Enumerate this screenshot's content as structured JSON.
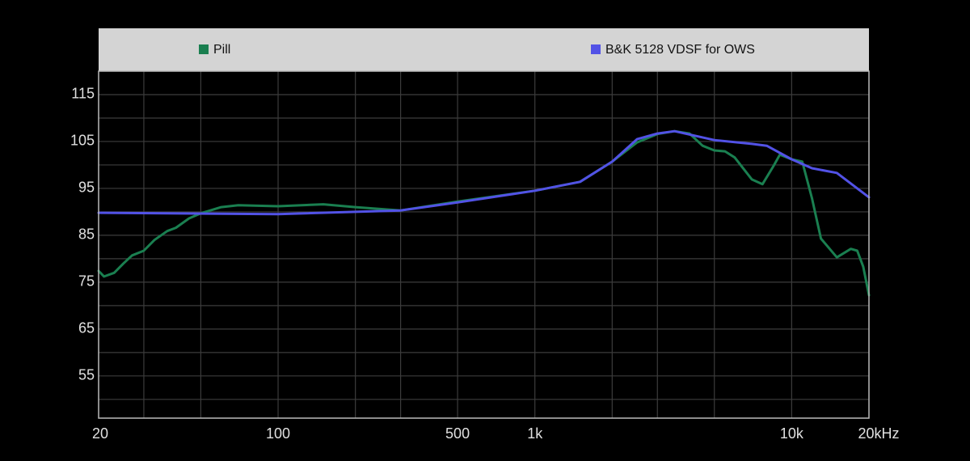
{
  "chart_data": {
    "type": "line",
    "xscale": "log",
    "xlim": [
      20,
      20000
    ],
    "ylim": [
      46,
      120
    ],
    "xticks": [
      20,
      100,
      500,
      {
        "value": 1000,
        "label": "1k"
      },
      {
        "value": 10000,
        "label": "10k"
      },
      {
        "value": 20000,
        "label": "20kHz"
      }
    ],
    "xgrid": [
      30,
      50,
      100,
      200,
      300,
      500,
      1000,
      2000,
      3000,
      5000,
      10000
    ],
    "yticks": [
      115,
      105,
      95,
      85,
      75,
      65,
      55
    ],
    "ygrid": [
      50,
      55,
      60,
      65,
      70,
      75,
      80,
      85,
      90,
      95,
      100,
      105,
      110,
      115
    ],
    "grid": true,
    "series": [
      {
        "name": "Pill",
        "color": "#1a7f50",
        "x": [
          20,
          21,
          23,
          25,
          27,
          30,
          33,
          37,
          40,
          45,
          50,
          60,
          70,
          100,
          150,
          200,
          300,
          500,
          1000,
          1500,
          2000,
          2500,
          3000,
          3500,
          4000,
          4500,
          5000,
          5500,
          6000,
          7000,
          7700,
          8500,
          9000,
          10000,
          11000,
          12000,
          13000,
          15000,
          17000,
          18000,
          19000,
          20000
        ],
        "values": [
          77.4,
          76.2,
          77,
          79,
          80.7,
          81.7,
          84,
          85.9,
          86.6,
          88.6,
          89.7,
          91,
          91.4,
          91.2,
          91.6,
          91,
          90.3,
          92.2,
          94.5,
          96.4,
          100.7,
          104.8,
          106.6,
          107.2,
          106.7,
          104.1,
          103.1,
          102.9,
          101.6,
          96.9,
          95.9,
          99.8,
          102.2,
          101.2,
          100.7,
          92.9,
          84.3,
          80.3,
          82.1,
          81.7,
          78.3,
          72.2
        ]
      },
      {
        "name": "B&K 5128 VDSF for OWS",
        "color": "#5252e6",
        "x": [
          20,
          100,
          300,
          500,
          1000,
          1500,
          2000,
          2500,
          3000,
          3500,
          5000,
          7000,
          8000,
          10000,
          12000,
          15000,
          20000
        ],
        "values": [
          89.8,
          89.5,
          90.3,
          92,
          94.5,
          96.4,
          100.7,
          105.5,
          106.7,
          107.2,
          105.3,
          104.5,
          104.1,
          101.2,
          99.3,
          98.3,
          93.1
        ]
      }
    ]
  }
}
